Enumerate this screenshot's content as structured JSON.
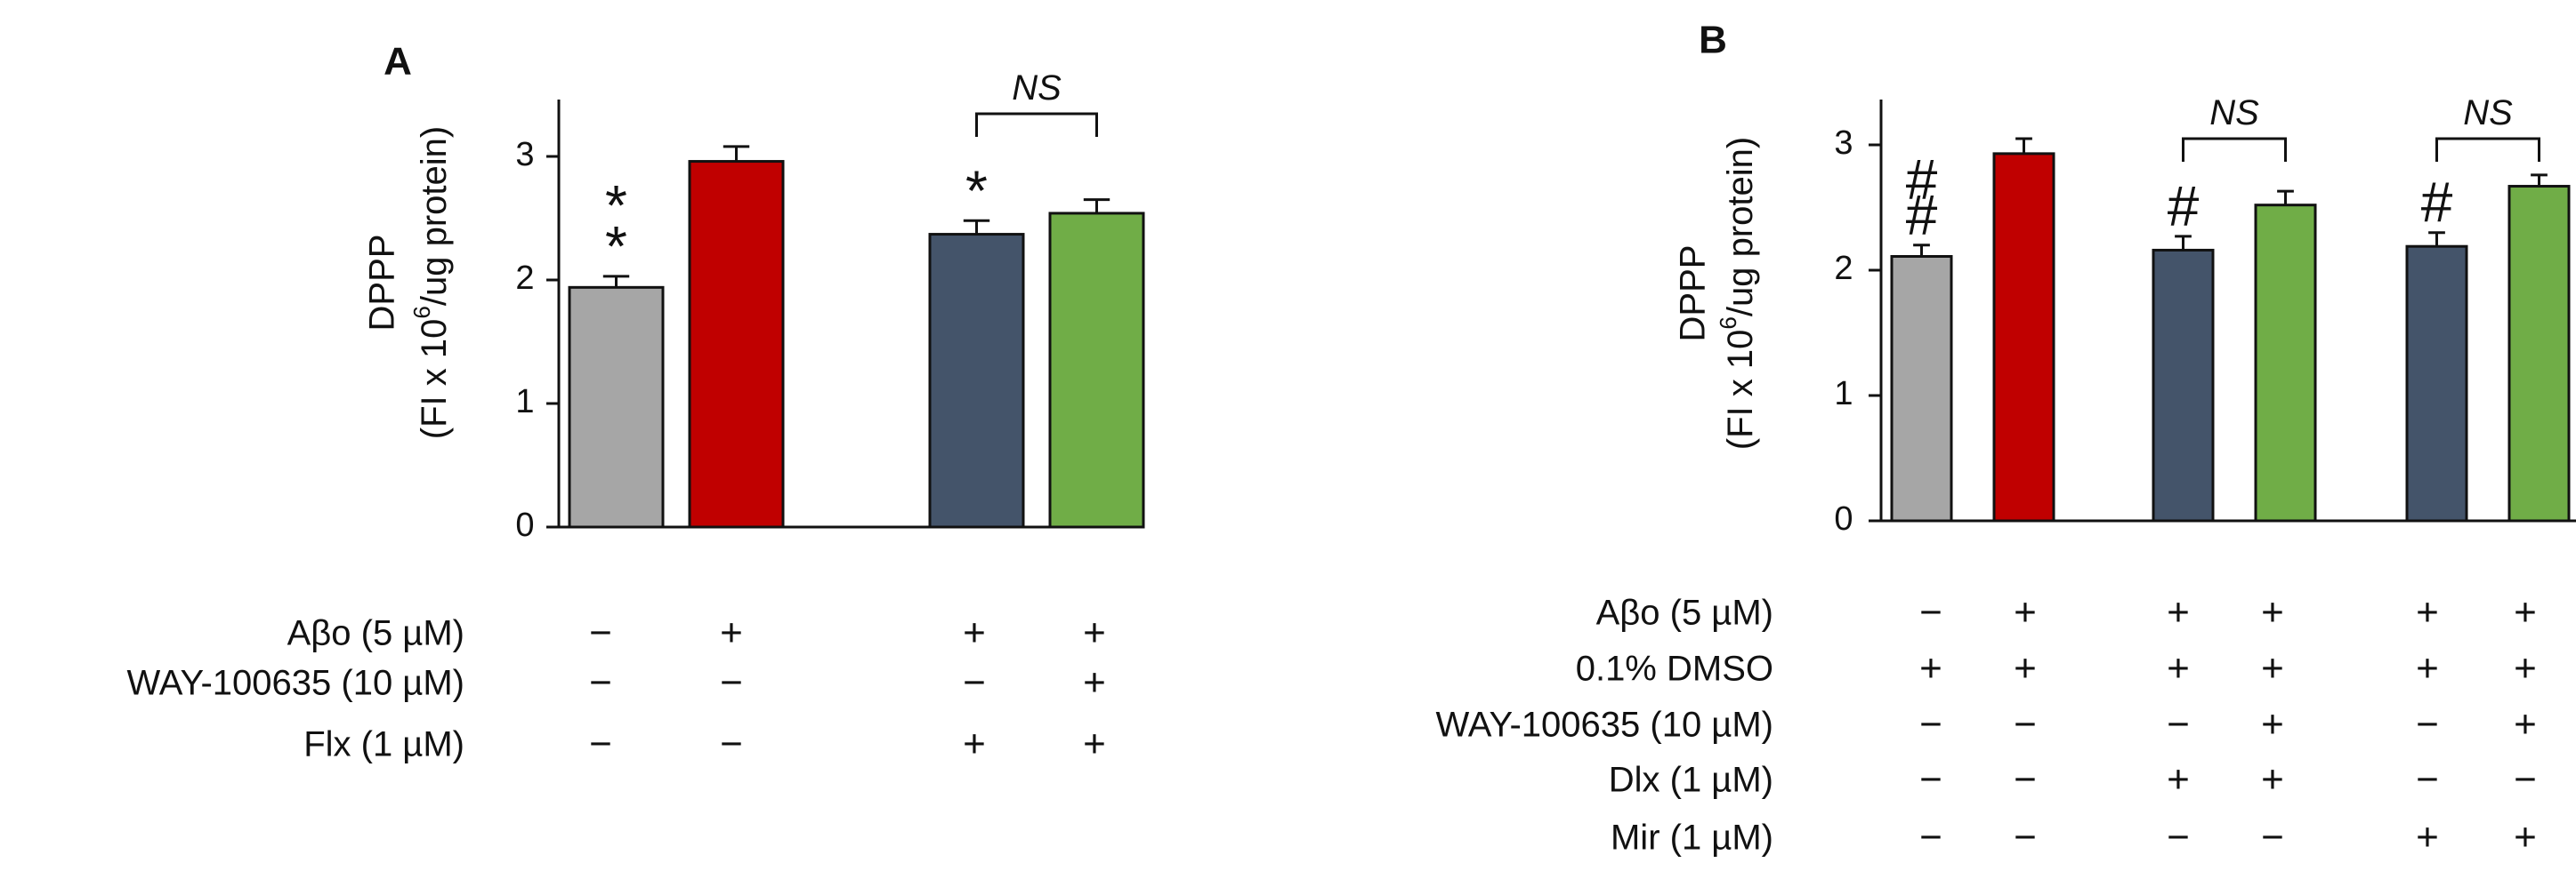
{
  "chart_data": [
    {
      "panel": "A",
      "type": "bar",
      "ylabel_line1": "DPPP",
      "ylabel_line2_pre": "(FI x 10",
      "ylabel_line2_sup": "6",
      "ylabel_line2_post": "/ug protein)",
      "ylim": [
        0,
        3.5
      ],
      "yticks": [
        0,
        1,
        2,
        3
      ],
      "groups": [
        1,
        1,
        2,
        2
      ],
      "bars": [
        {
          "value": 1.94,
          "err": 0.09,
          "color": "#a6a6a6",
          "sig": "**"
        },
        {
          "value": 2.96,
          "err": 0.12,
          "color": "#c00000",
          "sig": ""
        },
        {
          "value": 2.37,
          "err": 0.11,
          "color": "#44546a",
          "sig": "*"
        },
        {
          "value": 2.54,
          "err": 0.11,
          "color": "#70ad47",
          "sig": ""
        }
      ],
      "ns_brackets": [
        {
          "from": 2,
          "to": 3,
          "label": "NS"
        }
      ],
      "conditions": [
        {
          "label": "Aβo (5 µM)",
          "signs": [
            "−",
            "+",
            "+",
            "+"
          ]
        },
        {
          "label": "WAY-100635 (10 µM)",
          "signs": [
            "−",
            "−",
            "−",
            "+"
          ]
        },
        {
          "label": "Flx (1 µM)",
          "signs": [
            "−",
            "−",
            "+",
            "+"
          ]
        }
      ]
    },
    {
      "panel": "B",
      "type": "bar",
      "ylabel_line1": "DPPP",
      "ylabel_line2_pre": "(FI x 10",
      "ylabel_line2_sup": "6",
      "ylabel_line2_post": "/ug protein)",
      "ylim": [
        0,
        3.5
      ],
      "yticks": [
        0,
        1,
        2,
        3
      ],
      "bars": [
        {
          "value": 2.11,
          "err": 0.09,
          "color": "#a6a6a6",
          "sig": "##"
        },
        {
          "value": 2.93,
          "err": 0.12,
          "color": "#c00000",
          "sig": ""
        },
        {
          "value": 2.16,
          "err": 0.11,
          "color": "#44546a",
          "sig": "#"
        },
        {
          "value": 2.52,
          "err": 0.11,
          "color": "#70ad47",
          "sig": ""
        },
        {
          "value": 2.19,
          "err": 0.11,
          "color": "#44546a",
          "sig": "#"
        },
        {
          "value": 2.67,
          "err": 0.09,
          "color": "#70ad47",
          "sig": ""
        }
      ],
      "ns_brackets": [
        {
          "from": 2,
          "to": 3,
          "label": "NS"
        },
        {
          "from": 4,
          "to": 5,
          "label": "NS"
        }
      ],
      "conditions": [
        {
          "label": "Aβo (5 µM)",
          "signs": [
            "−",
            "+",
            "+",
            "+",
            "+",
            "+"
          ]
        },
        {
          "label": "0.1% DMSO",
          "signs": [
            "+",
            "+",
            "+",
            "+",
            "+",
            "+"
          ]
        },
        {
          "label": "WAY-100635 (10 µM)",
          "signs": [
            "−",
            "−",
            "−",
            "+",
            "−",
            "+"
          ]
        },
        {
          "label": "Dlx (1 µM)",
          "signs": [
            "−",
            "−",
            "+",
            "+",
            "−",
            "−"
          ]
        },
        {
          "label": "Mir (1 µM)",
          "signs": [
            "−",
            "−",
            "−",
            "−",
            "+",
            "+"
          ]
        }
      ]
    }
  ]
}
